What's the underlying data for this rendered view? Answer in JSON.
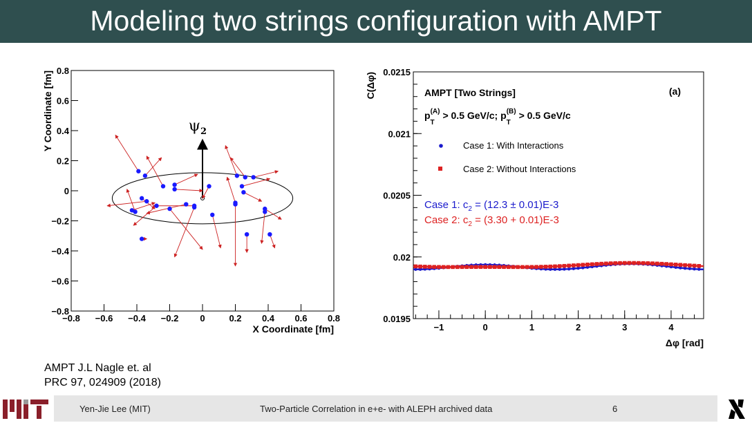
{
  "slide": {
    "title": "Modeling two strings configuration with AMPT",
    "reference_line1": "AMPT J.L Nagle et. al",
    "reference_line2": "PRC 97, 024909 (2018)"
  },
  "footer": {
    "author": "Yen-Jie Lee (MIT)",
    "talk_title": "Two-Particle Correlation in e+e- with ALEPH archived data",
    "page_number": "6"
  },
  "chart_data": [
    {
      "type": "scatter",
      "xlabel": "X Coordinate [fm]",
      "ylabel": "Y Coordinate [fm]",
      "xlim": [
        -0.8,
        0.8
      ],
      "ylim": [
        -0.8,
        0.8
      ],
      "xticks": [
        "−0.8",
        "−0.6",
        "−0.4",
        "−0.2",
        "0",
        "0.2",
        "0.4",
        "0.6",
        "0.8"
      ],
      "yticks": [
        "−0.8",
        "−0.6",
        "−0.4",
        "−0.2",
        "0",
        "0.2",
        "0.4",
        "0.6",
        "0.8"
      ],
      "annotation": "ψ",
      "annotation_subscript": "2",
      "ellipse": {
        "center": [
          0,
          -0.05
        ],
        "semi_axes": [
          0.55,
          0.17
        ]
      },
      "point_color": "#1a1aff",
      "arrow_color": "#cc2222",
      "points": [
        {
          "x": -0.39,
          "y": 0.13,
          "dx": -0.14,
          "dy": 0.24
        },
        {
          "x": -0.35,
          "y": 0.1,
          "dx": 0.1,
          "dy": 0.12
        },
        {
          "x": -0.37,
          "y": -0.05,
          "dx": 0.08,
          "dy": -0.07
        },
        {
          "x": -0.34,
          "y": -0.07,
          "dx": -0.24,
          "dy": -0.03
        },
        {
          "x": -0.43,
          "y": -0.13,
          "dx": 0.14,
          "dy": 0.05
        },
        {
          "x": -0.41,
          "y": -0.14,
          "dx": -0.05,
          "dy": 0.15
        },
        {
          "x": -0.28,
          "y": -0.1,
          "dx": -0.14,
          "dy": -0.13
        },
        {
          "x": -0.24,
          "y": 0.03,
          "dx": -0.1,
          "dy": 0.2
        },
        {
          "x": -0.2,
          "y": -0.12,
          "dx": 0.2,
          "dy": -0.27
        },
        {
          "x": -0.17,
          "y": 0.04,
          "dx": 0.14,
          "dy": 0.07
        },
        {
          "x": -0.17,
          "y": 0.01,
          "dx": 0.17,
          "dy": -0.01
        },
        {
          "x": 0.04,
          "y": 0.03,
          "dx": -0.04,
          "dy": -0.08
        },
        {
          "x": -0.37,
          "y": -0.32,
          "dx": 0.03,
          "dy": 0.0
        },
        {
          "x": 0.21,
          "y": 0.1,
          "dx": -0.07,
          "dy": 0.2
        },
        {
          "x": 0.26,
          "y": 0.09,
          "dx": -0.09,
          "dy": 0.13
        },
        {
          "x": 0.24,
          "y": 0.03,
          "dx": 0.17,
          "dy": 0.05
        },
        {
          "x": 0.25,
          "y": -0.01,
          "dx": 0.11,
          "dy": -0.06
        },
        {
          "x": 0.31,
          "y": 0.09,
          "dx": 0.15,
          "dy": 0.04
        },
        {
          "x": 0.2,
          "y": -0.08,
          "dx": -0.05,
          "dy": 0.17
        },
        {
          "x": 0.2,
          "y": -0.09,
          "dx": 0.0,
          "dy": -0.41
        },
        {
          "x": 0.38,
          "y": -0.12,
          "dx": 0.1,
          "dy": -0.07
        },
        {
          "x": 0.38,
          "y": -0.14,
          "dx": -0.02,
          "dy": -0.21
        },
        {
          "x": 0.27,
          "y": -0.29,
          "dx": 0.0,
          "dy": -0.12
        },
        {
          "x": 0.41,
          "y": -0.29,
          "dx": 0.03,
          "dy": -0.09
        },
        {
          "x": -0.1,
          "y": -0.09,
          "dx": -0.24,
          "dy": -0.06
        },
        {
          "x": -0.05,
          "y": -0.1,
          "dx": -0.25,
          "dy": 0.0
        },
        {
          "x": -0.05,
          "y": -0.11,
          "dx": -0.12,
          "dy": -0.33
        },
        {
          "x": 0.06,
          "y": -0.16,
          "dx": 0.05,
          "dy": -0.22
        }
      ]
    },
    {
      "type": "line",
      "xlabel": "Δφ [rad]",
      "ylabel": "C(Δφ)",
      "xlim": [
        -1.55,
        4.7
      ],
      "ylim": [
        0.0195,
        0.0215
      ],
      "xticks": [
        "−1",
        "0",
        "1",
        "2",
        "3",
        "4"
      ],
      "xtick_values": [
        -1,
        0,
        1,
        2,
        3,
        4
      ],
      "yticks": [
        "0.0195",
        "0.02",
        "0.0205",
        "0.021",
        "0.0215"
      ],
      "ytick_values": [
        0.0195,
        0.02,
        0.0205,
        0.021,
        0.0215
      ],
      "header": "AMPT  [Two Strings]",
      "panel_label": "(a)",
      "cut_left": "p",
      "cut_left_sub": "T",
      "cut_left_sup": "(A)",
      "cut_left_value": " > 0.5 GeV/c;",
      "cut_right": "p",
      "cut_right_sub": "T",
      "cut_right_sup": "(B)",
      "cut_right_value": " > 0.5 GeV/c",
      "series": [
        {
          "name": "Case 1: With Interactions",
          "color": "#1a1acc",
          "marker": "circle",
          "fit_label_prefix": "Case 1: c",
          "fit_label_sub": "2",
          "fit_label_value": " = (12.3 ± 0.01)E-3",
          "baseline": 0.01992,
          "v1": -0.0001,
          "v2": 0.00052,
          "v3": 1e-05
        },
        {
          "name": "Case 2: Without Interactions",
          "color": "#dd2222",
          "marker": "square",
          "fit_label_prefix": "Case 2: c",
          "fit_label_sub": "2",
          "fit_label_value": " = (3.30 + 0.01)E-3",
          "baseline": 0.01993,
          "v1": -0.00041,
          "v2": 0.00013,
          "v3": 1e-05
        }
      ]
    }
  ]
}
